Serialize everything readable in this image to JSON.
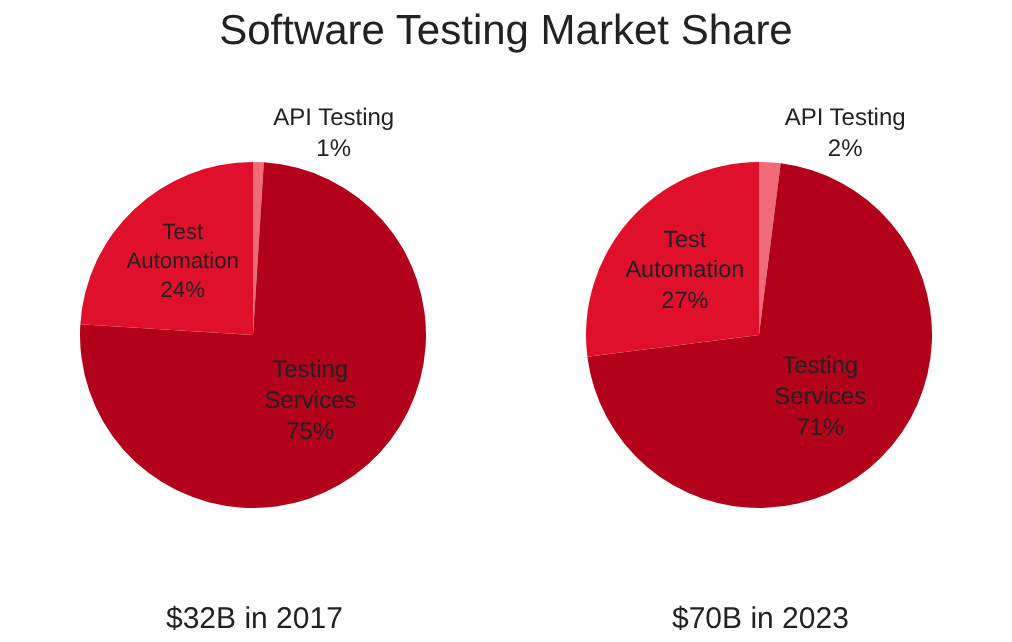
{
  "chart_data": [
    {
      "type": "pie",
      "title": "Software Testing Market Share",
      "categories": [
        "API Testing",
        "Testing Services",
        "Test Automation"
      ],
      "values": [
        1,
        75,
        24
      ],
      "value_labels": [
        "1%",
        "75%",
        "24%"
      ],
      "colors": [
        "#f06a78",
        "#b3001b",
        "#e0102c"
      ],
      "annotations": [
        "$32B in 2017"
      ],
      "legend": false
    },
    {
      "type": "pie",
      "categories": [
        "API Testing",
        "Testing Services",
        "Test Automation"
      ],
      "values": [
        2,
        71,
        27
      ],
      "value_labels": [
        "2%",
        "71%",
        "27%"
      ],
      "colors": [
        "#f06a78",
        "#b3001b",
        "#e0102c"
      ],
      "annotations": [
        "$70B in 2023"
      ],
      "legend": false
    }
  ]
}
